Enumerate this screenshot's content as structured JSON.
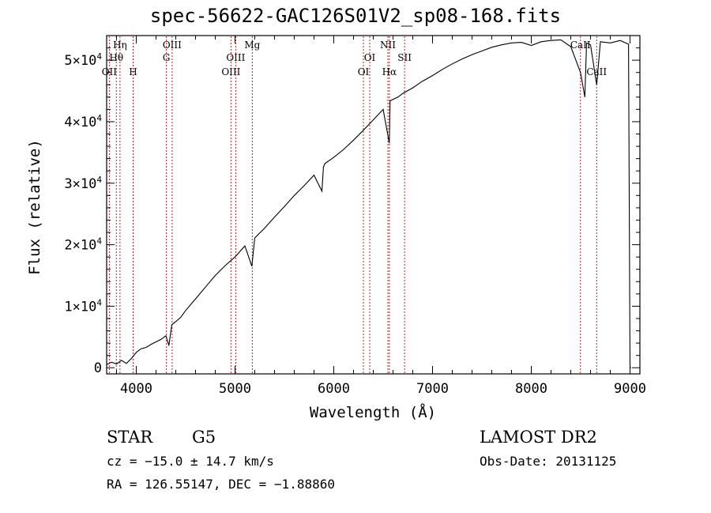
{
  "chart_data": {
    "type": "line",
    "title": "spec-56622-GAC126S01V2_sp08-168.fits",
    "xlabel": "Wavelength (Å)",
    "ylabel": "Flux (relative)",
    "xlim": [
      3700,
      9100
    ],
    "ylim": [
      -1000,
      54000
    ],
    "x_ticks": [
      {
        "value": 4000,
        "label": "4000"
      },
      {
        "value": 5000,
        "label": "5000"
      },
      {
        "value": 6000,
        "label": "6000"
      },
      {
        "value": 7000,
        "label": "7000"
      },
      {
        "value": 8000,
        "label": "8000"
      },
      {
        "value": 9000,
        "label": "9000"
      }
    ],
    "y_ticks": [
      {
        "value": 0,
        "label": "0",
        "exp": ""
      },
      {
        "value": 10000,
        "label": "1×10",
        "exp": "4"
      },
      {
        "value": 20000,
        "label": "2×10",
        "exp": "4"
      },
      {
        "value": 30000,
        "label": "3×10",
        "exp": "4"
      },
      {
        "value": 40000,
        "label": "4×10",
        "exp": "4"
      },
      {
        "value": 50000,
        "label": "5×10",
        "exp": "4"
      }
    ],
    "series": [
      {
        "color": "#000000",
        "x": [
          3700,
          3750,
          3800,
          3850,
          3900,
          3950,
          4000,
          4050,
          4100,
          4150,
          4200,
          4250,
          4300,
          4330,
          4360,
          4400,
          4450,
          4500,
          4600,
          4700,
          4800,
          4900,
          5000,
          5100,
          5170,
          5200,
          5300,
          5400,
          5500,
          5600,
          5700,
          5800,
          5880,
          5895,
          5910,
          6000,
          6100,
          6200,
          6300,
          6400,
          6500,
          6562,
          6570,
          6650,
          6700,
          6800,
          6900,
          7000,
          7100,
          7200,
          7300,
          7400,
          7500,
          7600,
          7700,
          7800,
          7900,
          8000,
          8100,
          8200,
          8300,
          8400,
          8498,
          8542,
          8560,
          8600,
          8662,
          8700,
          8800,
          8900,
          8985,
          9000,
          9010
        ],
        "y": [
          500,
          900,
          600,
          1200,
          700,
          1500,
          2500,
          3100,
          3300,
          3800,
          4200,
          4600,
          5200,
          3600,
          7000,
          7500,
          8200,
          9300,
          11200,
          13100,
          15000,
          16600,
          18000,
          19800,
          16500,
          21100,
          22700,
          24500,
          26200,
          28000,
          29600,
          31300,
          28700,
          32600,
          33200,
          34200,
          35500,
          37000,
          38600,
          40300,
          42000,
          36500,
          43400,
          44000,
          44600,
          45500,
          46600,
          47500,
          48500,
          49400,
          50200,
          50900,
          51500,
          52100,
          52500,
          52800,
          52900,
          52400,
          53000,
          53200,
          53300,
          52200,
          48000,
          44000,
          52800,
          52500,
          46000,
          53000,
          52800,
          53200,
          52600,
          0,
          0
        ]
      }
    ],
    "line_markers": [
      {
        "label": "OII",
        "x": 3727,
        "row": 3
      },
      {
        "label": "Hθ",
        "x": 3798,
        "row": 2
      },
      {
        "label": "Hη",
        "x": 3835,
        "row": 1
      },
      {
        "label": "H",
        "x": 3968,
        "row": 3
      },
      {
        "label": "OIII",
        "x": 4363,
        "row": 1
      },
      {
        "label": "G",
        "x": 4305,
        "row": 2
      },
      {
        "label": "OIII",
        "x": 4959,
        "row": 3
      },
      {
        "label": "OIII",
        "x": 5007,
        "row": 2
      },
      {
        "label": "Mg",
        "x": 5175,
        "row": 1
      },
      {
        "label": "OI",
        "x": 6300,
        "row": 3
      },
      {
        "label": "OI",
        "x": 6364,
        "row": 2
      },
      {
        "label": "NII",
        "x": 6548,
        "row": 1
      },
      {
        "label": "Hα",
        "x": 6563,
        "row": 3
      },
      {
        "label": "SII",
        "x": 6717,
        "row": 2
      },
      {
        "label": "CaII",
        "x": 8498,
        "row": 1
      },
      {
        "label": "CaII",
        "x": 8662,
        "row": 3
      }
    ],
    "marker_color": "#b22222",
    "grid": false
  },
  "info": {
    "object_class": "STAR",
    "subclass": "G5",
    "survey": "LAMOST DR2",
    "cz": "cz = −15.0 ± 14.7 km/s",
    "obs_date": "Obs-Date: 20131125",
    "coords": "RA = 126.55147, DEC =  −1.88860"
  }
}
